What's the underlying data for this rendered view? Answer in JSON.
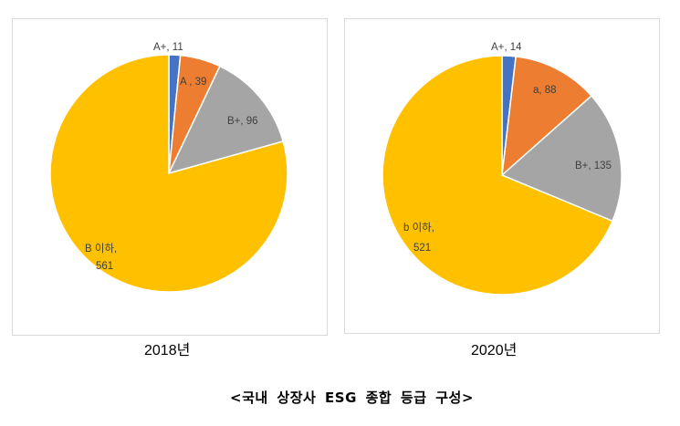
{
  "caption": "<국내 상장사 ESG 종합 등급 구성>",
  "colors": {
    "A_plus": "#4472C4",
    "A": "#ED7D31",
    "B_plus": "#A5A5A5",
    "B_below": "#FFC000",
    "border": "#D9D9D9"
  },
  "charts": [
    {
      "year_label": "2018년",
      "labels": {
        "a_plus": "A+, 11",
        "a": "A , 39",
        "b_plus": "B+, 96",
        "b_below_1": "B 이하,",
        "b_below_2": "561"
      }
    },
    {
      "year_label": "2020년",
      "labels": {
        "a_plus": "A+, 14",
        "a": "a, 88",
        "b_plus": "B+, 135",
        "b_below_1": "b 이하,",
        "b_below_2": "521"
      }
    }
  ],
  "chart_data": [
    {
      "type": "pie",
      "title": "2018년",
      "categories": [
        "A+",
        "A",
        "B+",
        "B 이하"
      ],
      "values": [
        11,
        39,
        96,
        561
      ],
      "colors": [
        "#4472C4",
        "#ED7D31",
        "#A5A5A5",
        "#FFC000"
      ],
      "start_angle": "12 o'clock, clockwise",
      "legend": "none (data labels)"
    },
    {
      "type": "pie",
      "title": "2020년",
      "categories": [
        "A+",
        "a",
        "B+",
        "b 이하"
      ],
      "values": [
        14,
        88,
        135,
        521
      ],
      "colors": [
        "#4472C4",
        "#ED7D31",
        "#A5A5A5",
        "#FFC000"
      ],
      "start_angle": "12 o'clock, clockwise",
      "legend": "none (data labels)"
    }
  ]
}
